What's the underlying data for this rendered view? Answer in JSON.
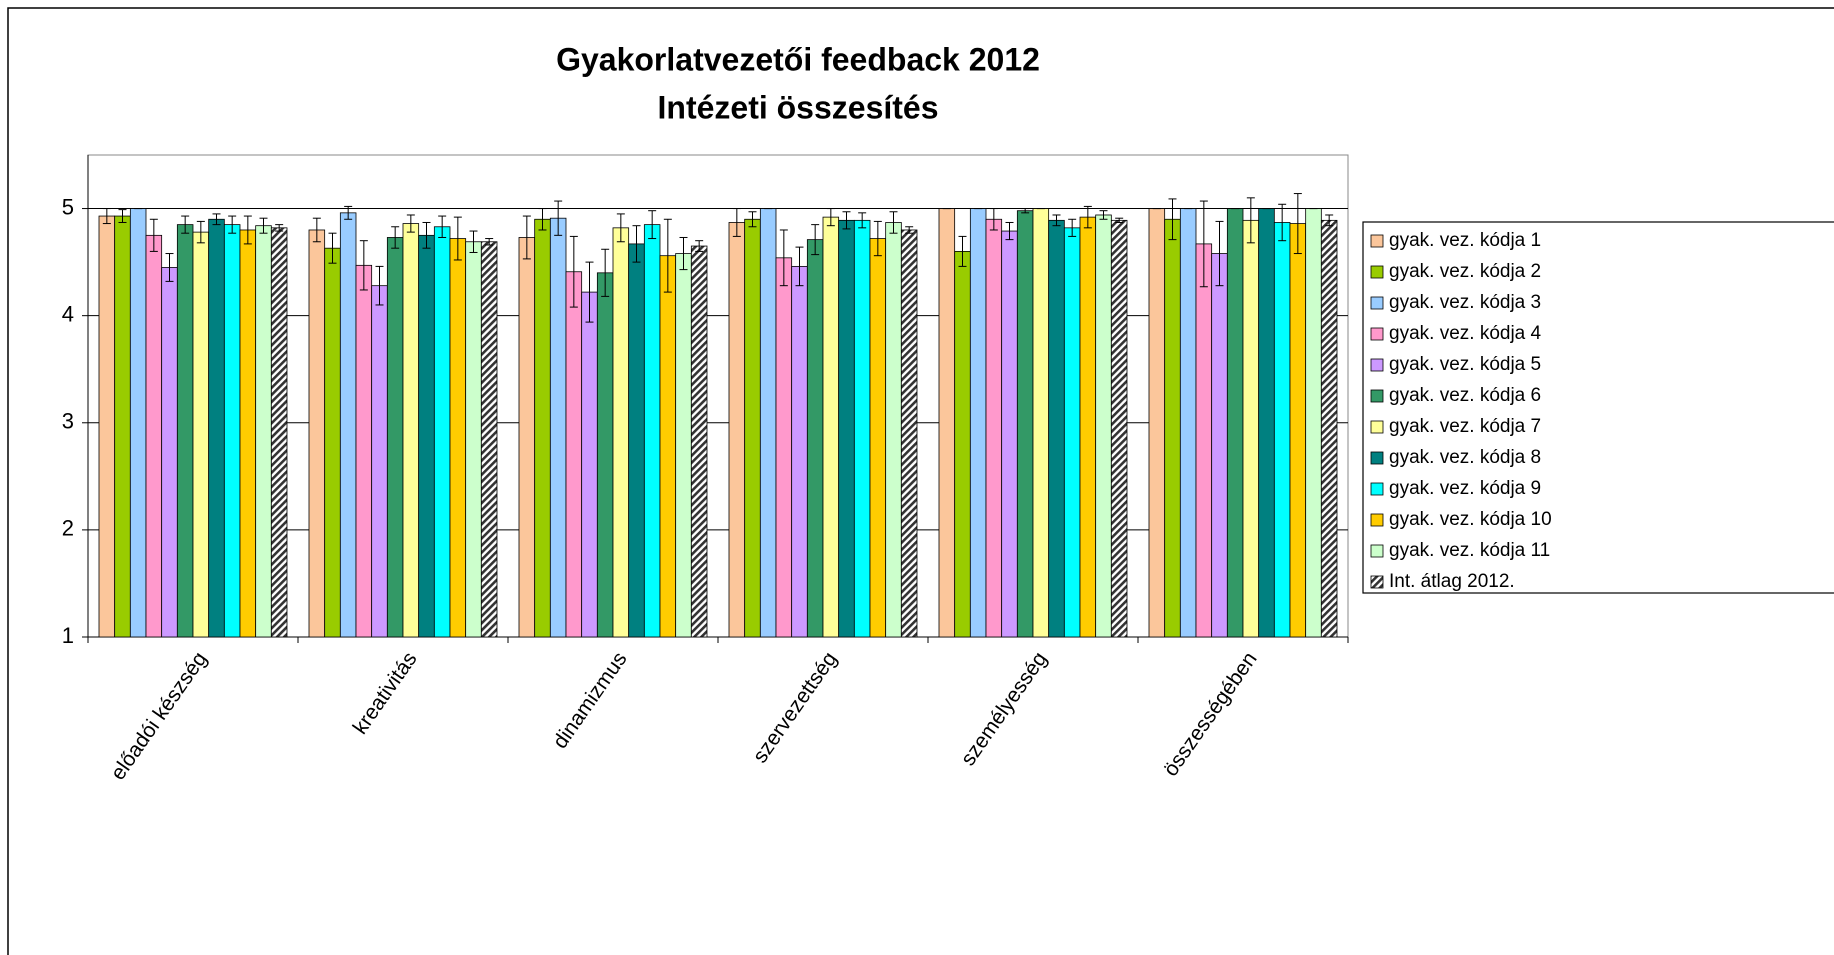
{
  "chart_data": {
    "type": "bar",
    "title": "Gyakorlatvezetői feedback 2012",
    "subtitle": "Intézeti összesítés",
    "categories": [
      "előadói készség",
      "kreativitás",
      "dinamizmus",
      "szervezettség",
      "személyesség",
      "összességében"
    ],
    "ylim": [
      1,
      5.5
    ],
    "yticks": [
      1,
      2,
      3,
      4,
      5
    ],
    "grid": true,
    "legend": "right",
    "series": [
      {
        "name": "gyak. vez. kódja 1",
        "color": "#fbc69b",
        "values": [
          4.93,
          4.8,
          4.73,
          4.87,
          5.0,
          5.0
        ],
        "errors": [
          0.07,
          0.11,
          0.2,
          0.13,
          0,
          0
        ]
      },
      {
        "name": "gyak. vez. kódja 2",
        "color": "#99cc00",
        "values": [
          4.93,
          4.63,
          4.9,
          4.9,
          4.6,
          4.9
        ],
        "errors": [
          0.06,
          0.14,
          0.1,
          0.07,
          0.14,
          0.19
        ]
      },
      {
        "name": "gyak. vez. kódja 3",
        "color": "#99ccff",
        "values": [
          5.0,
          4.96,
          4.91,
          5.0,
          5.0,
          5.0
        ],
        "errors": [
          0,
          0.06,
          0.16,
          0,
          0,
          0
        ]
      },
      {
        "name": "gyak. vez. kódja 4",
        "color": "#ff99cc",
        "values": [
          4.75,
          4.47,
          4.41,
          4.54,
          4.9,
          4.67
        ],
        "errors": [
          0.15,
          0.23,
          0.33,
          0.26,
          0.1,
          0.4
        ]
      },
      {
        "name": "gyak. vez. kódja 5",
        "color": "#cc99ff",
        "values": [
          4.45,
          4.28,
          4.22,
          4.46,
          4.79,
          4.58
        ],
        "errors": [
          0.13,
          0.18,
          0.28,
          0.18,
          0.08,
          0.3
        ]
      },
      {
        "name": "gyak. vez. kódja 6",
        "color": "#339966",
        "values": [
          4.85,
          4.73,
          4.4,
          4.71,
          4.98,
          5.0
        ],
        "errors": [
          0.08,
          0.1,
          0.22,
          0.14,
          0.02,
          0
        ]
      },
      {
        "name": "gyak. vez. kódja 7",
        "color": "#ffff99",
        "values": [
          4.78,
          4.86,
          4.82,
          4.92,
          5.0,
          4.89
        ],
        "errors": [
          0.1,
          0.08,
          0.13,
          0.08,
          0,
          0.21
        ]
      },
      {
        "name": "gyak. vez. kódja 8",
        "color": "#008080",
        "values": [
          4.9,
          4.75,
          4.67,
          4.89,
          4.89,
          5.0
        ],
        "errors": [
          0.05,
          0.12,
          0.17,
          0.08,
          0.05,
          0
        ]
      },
      {
        "name": "gyak. vez. kódja 9",
        "color": "#00ffff",
        "values": [
          4.85,
          4.83,
          4.85,
          4.89,
          4.82,
          4.87
        ],
        "errors": [
          0.08,
          0.1,
          0.13,
          0.07,
          0.08,
          0.17
        ]
      },
      {
        "name": "gyak. vez. kódja 10",
        "color": "#ffcc00",
        "values": [
          4.8,
          4.72,
          4.56,
          4.72,
          4.92,
          4.86
        ],
        "errors": [
          0.13,
          0.2,
          0.34,
          0.16,
          0.1,
          0.28
        ]
      },
      {
        "name": "gyak. vez. kódja 11",
        "color": "#ccffcc",
        "values": [
          4.84,
          4.69,
          4.58,
          4.87,
          4.94,
          5.0
        ],
        "errors": [
          0.07,
          0.1,
          0.15,
          0.1,
          0.04,
          0
        ]
      },
      {
        "name": "Int. átlag 2012.",
        "color": "#333333",
        "hatch": true,
        "values": [
          4.82,
          4.69,
          4.65,
          4.8,
          4.89,
          4.89
        ],
        "errors": [
          0.03,
          0.03,
          0.05,
          0.03,
          0.02,
          0.05
        ]
      }
    ]
  }
}
